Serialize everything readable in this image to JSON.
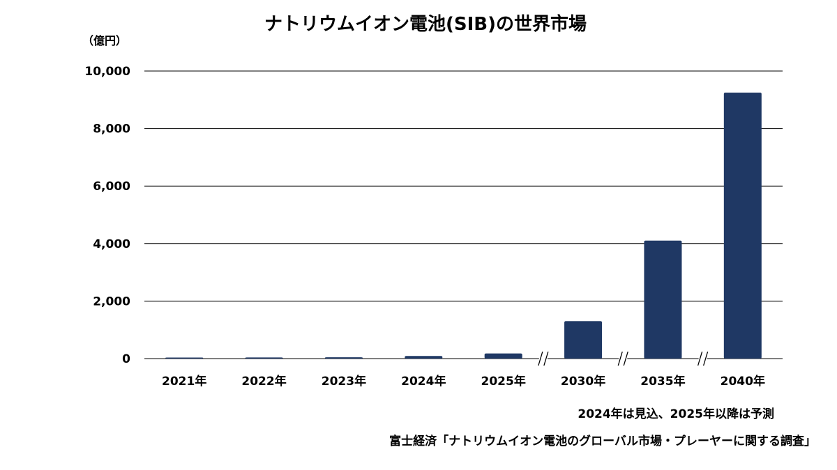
{
  "chart_data": {
    "type": "bar",
    "title": "ナトリウムイオン電池(SIB)の世界市場",
    "ylabel": "（億円）",
    "xlabel": "",
    "categories": [
      "2021年",
      "2022年",
      "2023年",
      "2024年",
      "2025年",
      "2030年",
      "2035年",
      "2040年"
    ],
    "values": [
      35,
      40,
      45,
      90,
      180,
      1300,
      4100,
      9250
    ],
    "ylim": [
      0,
      10000
    ],
    "yticks": [
      0,
      2000,
      4000,
      6000,
      8000,
      10000
    ],
    "ytick_labels": [
      "0",
      "2,000",
      "4,000",
      "6,000",
      "8,000",
      "10,000"
    ],
    "grid": true,
    "axis_breaks_before": [
      "2030年",
      "2035年",
      "2040年"
    ],
    "bar_color": "#1f3864"
  },
  "notes": {
    "forecast": "2024年は見込、2025年以降は予測",
    "source": "富士経済「ナトリウムイオン電池のグローバル市場・プレーヤーに関する調査」"
  }
}
